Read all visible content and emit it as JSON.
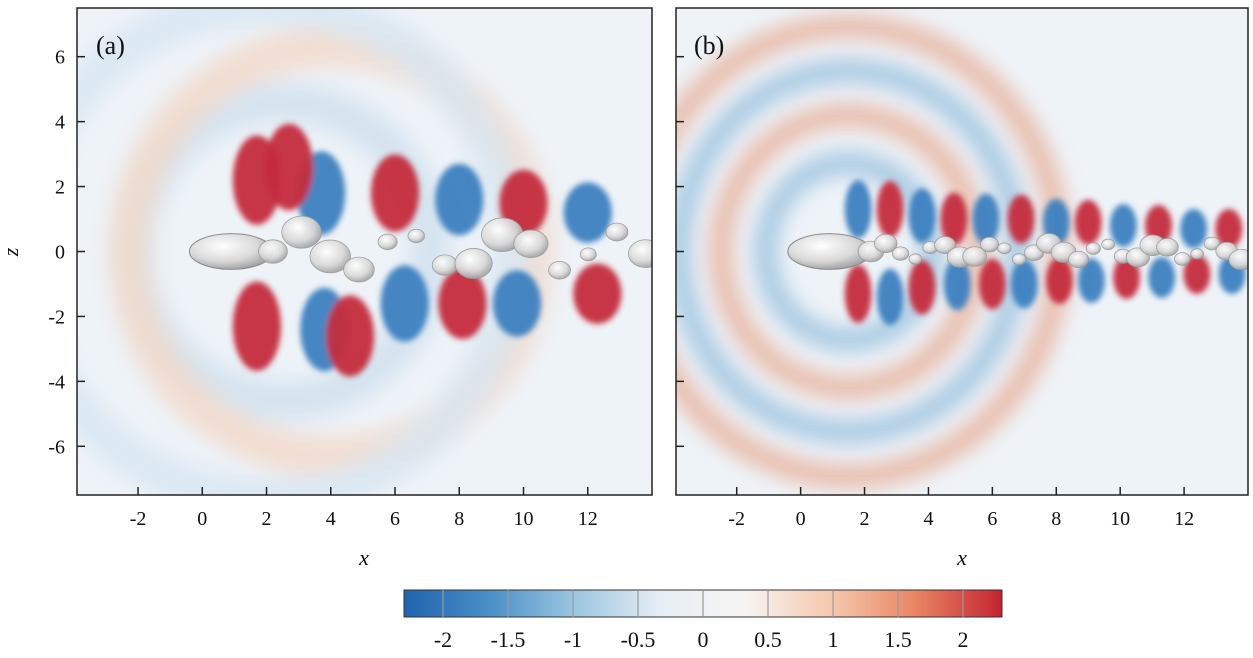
{
  "chart_data": [
    {
      "type": "heatmap",
      "panel_label": "(a)",
      "xlabel": "x",
      "ylabel": "z",
      "xlim": [
        -3.9,
        14
      ],
      "ylim": [
        -7.5,
        7.5
      ],
      "xticks": [
        -2,
        0,
        2,
        4,
        6,
        8,
        10,
        12
      ],
      "yticks": [
        -6,
        -4,
        -2,
        0,
        2,
        4,
        6
      ],
      "field": {
        "lobes": [
          {
            "x": 1.7,
            "z": 2.2,
            "value": 2.2
          },
          {
            "x": 1.7,
            "z": -2.3,
            "value": 2.2
          },
          {
            "x": 3.7,
            "z": 1.8,
            "value": -2.2
          },
          {
            "x": 3.8,
            "z": -2.4,
            "value": -2.2
          },
          {
            "x": 2.7,
            "z": 2.6,
            "value": 2.2
          },
          {
            "x": 4.6,
            "z": -2.6,
            "value": 2.2
          },
          {
            "x": 6.0,
            "z": 1.8,
            "value": 2.2
          },
          {
            "x": 6.3,
            "z": -1.6,
            "value": -2.2
          },
          {
            "x": 8.0,
            "z": 1.6,
            "value": -2.2
          },
          {
            "x": 8.1,
            "z": -1.6,
            "value": 2.2
          },
          {
            "x": 10.0,
            "z": 1.5,
            "value": 2.2
          },
          {
            "x": 9.8,
            "z": -1.6,
            "value": -2.2
          },
          {
            "x": 12.0,
            "z": 1.2,
            "value": -2.2
          },
          {
            "x": 12.3,
            "z": -1.3,
            "value": 2.2
          }
        ]
      },
      "isosurface": "wake vortex structures behind body at x=0"
    },
    {
      "type": "heatmap",
      "panel_label": "(b)",
      "xlabel": "x",
      "ylabel": "",
      "xlim": [
        -3.9,
        14
      ],
      "ylim": [
        -7.5,
        7.5
      ],
      "xticks": [
        -2,
        0,
        2,
        4,
        6,
        8,
        10,
        12
      ],
      "yticks": [
        -6,
        -4,
        -2,
        0,
        2,
        4,
        6
      ],
      "field": {
        "rings": [
          {
            "x": 1.5,
            "z": 0,
            "radius": 2.6,
            "value": -1.2
          },
          {
            "x": 1.5,
            "z": 0,
            "radius": 4.0,
            "value": 1.0
          },
          {
            "x": 1.5,
            "z": 0,
            "radius": 5.3,
            "value": -0.9
          },
          {
            "x": 1.5,
            "z": 0,
            "radius": 6.6,
            "value": 0.8
          }
        ],
        "lobes": [
          {
            "x": 1.8,
            "z": 1.3,
            "value": -2.2
          },
          {
            "x": 2.8,
            "z": 1.3,
            "value": 2.2
          },
          {
            "x": 1.8,
            "z": -1.3,
            "value": 2.2
          },
          {
            "x": 2.8,
            "z": -1.4,
            "value": -2.2
          },
          {
            "x": 3.8,
            "z": 1.1,
            "value": -2.2
          },
          {
            "x": 3.8,
            "z": -1.1,
            "value": 2.2
          },
          {
            "x": 4.8,
            "z": 1.0,
            "value": 2.2
          },
          {
            "x": 4.9,
            "z": -1.0,
            "value": -2.2
          },
          {
            "x": 5.8,
            "z": 1.0,
            "value": -2.2
          },
          {
            "x": 6.0,
            "z": -1.0,
            "value": 2.2
          },
          {
            "x": 6.9,
            "z": 1.0,
            "value": 2.2
          },
          {
            "x": 7.0,
            "z": -1.0,
            "value": -2.2
          },
          {
            "x": 8.0,
            "z": 0.9,
            "value": -2.2
          },
          {
            "x": 8.1,
            "z": -0.9,
            "value": 2.2
          },
          {
            "x": 9.0,
            "z": 0.9,
            "value": 2.2
          },
          {
            "x": 9.1,
            "z": -0.9,
            "value": -2.2
          },
          {
            "x": 10.1,
            "z": 0.8,
            "value": -2.2
          },
          {
            "x": 10.2,
            "z": -0.8,
            "value": 2.2
          },
          {
            "x": 11.2,
            "z": 0.8,
            "value": 2.2
          },
          {
            "x": 11.3,
            "z": -0.8,
            "value": -2.2
          },
          {
            "x": 12.3,
            "z": 0.7,
            "value": -2.2
          },
          {
            "x": 12.4,
            "z": -0.7,
            "value": 2.2
          },
          {
            "x": 13.4,
            "z": 0.7,
            "value": 2.2
          },
          {
            "x": 13.5,
            "z": -0.7,
            "value": -2.2
          }
        ]
      },
      "isosurface": "turbulent wake vortex structures behind body at x=0"
    }
  ],
  "colorbar": {
    "range": [
      -2.3,
      2.3
    ],
    "ticks": [
      -2,
      -1.5,
      -1,
      -0.5,
      0,
      0.5,
      1,
      1.5,
      2
    ],
    "tick_labels": [
      "-2",
      "-1.5",
      "-1",
      "-0.5",
      "0",
      "0.5",
      "1",
      "1.5",
      "2"
    ],
    "colormap": [
      "#1f63ae",
      "#4a8fc7",
      "#9cc6e0",
      "#e6eef5",
      "#f7f4f2",
      "#f6c8ad",
      "#e98463",
      "#c42332"
    ]
  },
  "colors": {
    "positive": "#c42c3d",
    "negative": "#3c7fc0",
    "neutral": "#f2f2f2"
  }
}
